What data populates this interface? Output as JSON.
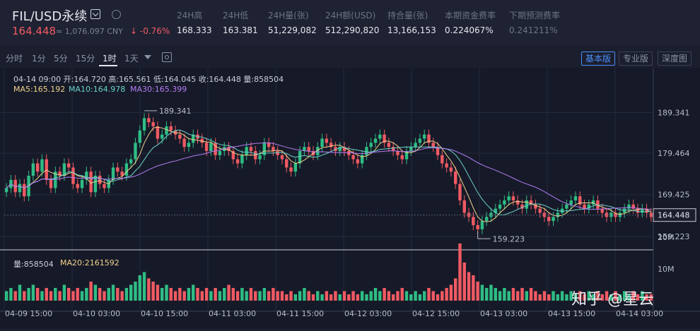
{
  "header": {
    "symbol": "FIL/USD永续",
    "price": "164.448",
    "cny": "≈ 1,076.097 CNY",
    "change": "-0.76%",
    "stats": [
      {
        "label": "24H高",
        "value": "168.333"
      },
      {
        "label": "24H低",
        "value": "163.381"
      },
      {
        "label": "24H量(张)",
        "value": "51,229,082"
      },
      {
        "label": "24H额(USD)",
        "value": "512,290,820"
      },
      {
        "label": "持合量(张)",
        "value": "13,166,153"
      },
      {
        "label": "本期资金费率",
        "value": "0.224067%"
      },
      {
        "label": "下期预测费率",
        "value": "0.241211%"
      }
    ]
  },
  "toolbar": {
    "intervals": [
      "分时",
      "1分",
      "5分",
      "15分",
      "1时",
      "1天"
    ],
    "active_interval": "1时",
    "modes": [
      "基本版",
      "专业版",
      "深度图"
    ],
    "active_mode": "基本版"
  },
  "info": {
    "ohlc": "04-14 09:00  开:164.720  高:165.561  低:164.045  收:164.448  量:858504",
    "ma5": "MA5:165.192",
    "ma10": "MA10:164.978",
    "ma30": "MA30:165.399",
    "vol": "量:858504",
    "ma20": "MA20:2161592"
  },
  "colors": {
    "up": "#2fbd85",
    "down": "#f05a63",
    "ma5": "#f3d28c",
    "ma10": "#6ad2c8",
    "ma30": "#b57cf5",
    "accent": "#4a90ff"
  },
  "chart_data": {
    "type": "candlestick",
    "y_ticks": [
      189.341,
      179.464,
      169.425,
      159.223
    ],
    "last_price": "164.448",
    "high_label": "189.341",
    "low_label": "159.223",
    "x_labels": [
      "04-09 15:00",
      "04-10 03:00",
      "04-10 15:00",
      "04-11 03:00",
      "04-11 15:00",
      "04-12 03:00",
      "04-12 15:00",
      "04-13 03:00",
      "04-13 15:00",
      "04-14 03:00"
    ],
    "vol_ticks": [
      "20M",
      "10M"
    ],
    "close": [
      171,
      173,
      170,
      172,
      169,
      174,
      177,
      175,
      178,
      173,
      171,
      175,
      174,
      177,
      176,
      172,
      171,
      173,
      175,
      170,
      174,
      172,
      171,
      173,
      176,
      175,
      174,
      177,
      178,
      182,
      185,
      188,
      187,
      186,
      183,
      184,
      186,
      185,
      184,
      183,
      181,
      182,
      184,
      183,
      182,
      180,
      182,
      179,
      180,
      181,
      180,
      178,
      177,
      179,
      181,
      180,
      178,
      179,
      182,
      181,
      180,
      179,
      178,
      176,
      175,
      177,
      180,
      181,
      180,
      179,
      181,
      183,
      182,
      181,
      180,
      181,
      180,
      179,
      178,
      177,
      179,
      181,
      182,
      183,
      184,
      182,
      181,
      180,
      179,
      178,
      180,
      181,
      182,
      183,
      184,
      182,
      181,
      179,
      177,
      176,
      175,
      172,
      168,
      165,
      164,
      162,
      161,
      163,
      164,
      165,
      166,
      167,
      168,
      169,
      168,
      167,
      166,
      168,
      167,
      166,
      165,
      164,
      163,
      164,
      165,
      166,
      167,
      168,
      169,
      167,
      166,
      167,
      168,
      166,
      165,
      164,
      165,
      164,
      165,
      166,
      167,
      166,
      165,
      166,
      165,
      164
    ],
    "volume_M": [
      3,
      4,
      3,
      5,
      3,
      4,
      5,
      4,
      3,
      4,
      3,
      4,
      3,
      5,
      4,
      3,
      4,
      3,
      4,
      6,
      5,
      4,
      3,
      4,
      5,
      4,
      3,
      4,
      5,
      6,
      8,
      9,
      7,
      6,
      5,
      4,
      5,
      4,
      3,
      4,
      3,
      4,
      5,
      4,
      3,
      4,
      3,
      4,
      3,
      4,
      5,
      4,
      3,
      4,
      3,
      4,
      3,
      3,
      4,
      3,
      4,
      3,
      3,
      2,
      3,
      2,
      3,
      4,
      3,
      2,
      3,
      2,
      3,
      2,
      3,
      2,
      3,
      2,
      3,
      2,
      3,
      2,
      3,
      4,
      3,
      4,
      3,
      2,
      3,
      4,
      3,
      2,
      3,
      2,
      3,
      4,
      3,
      2,
      3,
      4,
      5,
      7,
      18,
      12,
      9,
      8,
      6,
      5,
      4,
      5,
      4,
      3,
      4,
      3,
      4,
      3,
      4,
      3,
      4,
      3,
      2,
      3,
      2,
      3,
      2,
      3,
      2,
      3,
      2,
      3,
      2,
      3,
      2,
      3,
      2,
      3,
      2,
      3,
      2,
      3,
      2,
      3,
      2,
      3,
      2,
      2
    ]
  }
}
